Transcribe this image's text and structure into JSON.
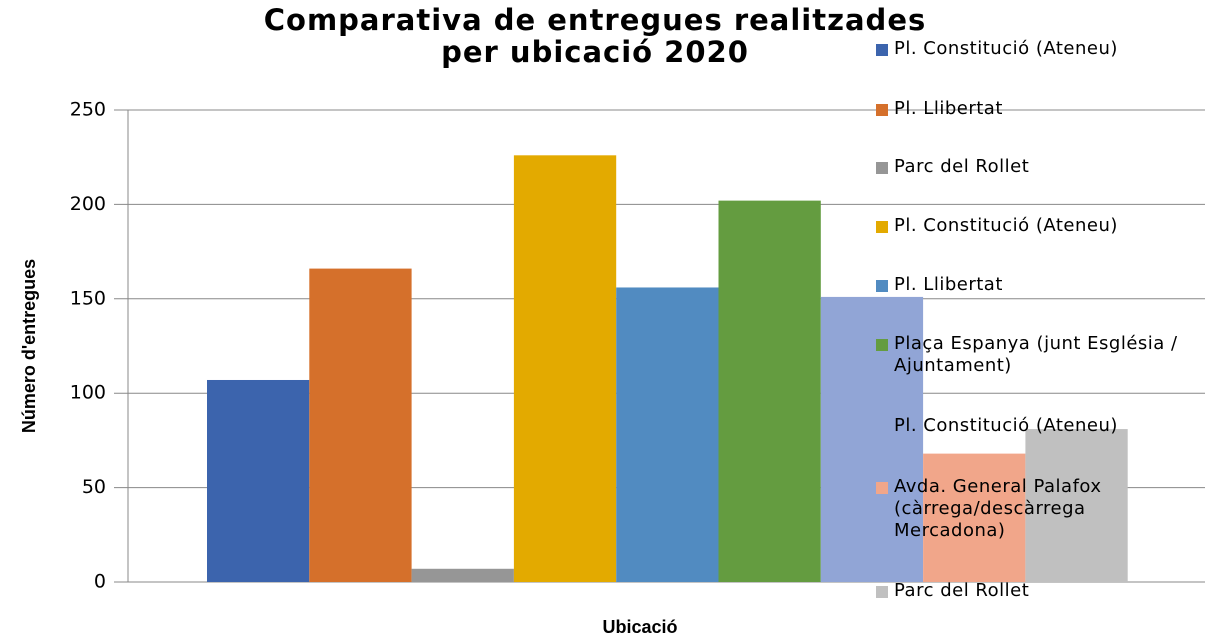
{
  "chart_data": {
    "type": "bar",
    "title": "Comparativa de entregues realitzades per ubicació 2020",
    "x_label": "Ubicació",
    "y_label": "Número d'entregues",
    "categories": [
      null
    ],
    "series": [
      {
        "name": "Pl. Constitució (Ateneu)",
        "color": "#3c64ad",
        "values": [
          107
        ]
      },
      {
        "name": "Pl. Llibertat",
        "color": "#d5702b",
        "values": [
          166
        ]
      },
      {
        "name": "Parc del Rollet",
        "color": "#969696",
        "values": [
          7
        ]
      },
      {
        "name": "Pl. Constitució (Ateneu)",
        "color": "#e3aa00",
        "values": [
          226
        ]
      },
      {
        "name": "Pl. Llibertat",
        "color": "#518bc1",
        "values": [
          156
        ]
      },
      {
        "name": "Plaça Espanya (junt Església / Ajuntament)",
        "color": "#649c40",
        "values": [
          202
        ]
      },
      {
        "name": "Pl. Constitució (Ateneu)",
        "color": "#91a5d6",
        "values": [
          151
        ]
      },
      {
        "name": "Avda. General Palafox (càrrega/descàrrega Mercadona)",
        "color": "#f1a68a",
        "values": [
          68
        ]
      },
      {
        "name": "Parc del Rollet",
        "color": "#c0c0c0",
        "values": [
          81
        ]
      }
    ],
    "ylim": [
      0,
      250
    ],
    "yticks": [
      0,
      50,
      100,
      150,
      200,
      250
    ],
    "grid": true,
    "legend": "right"
  }
}
